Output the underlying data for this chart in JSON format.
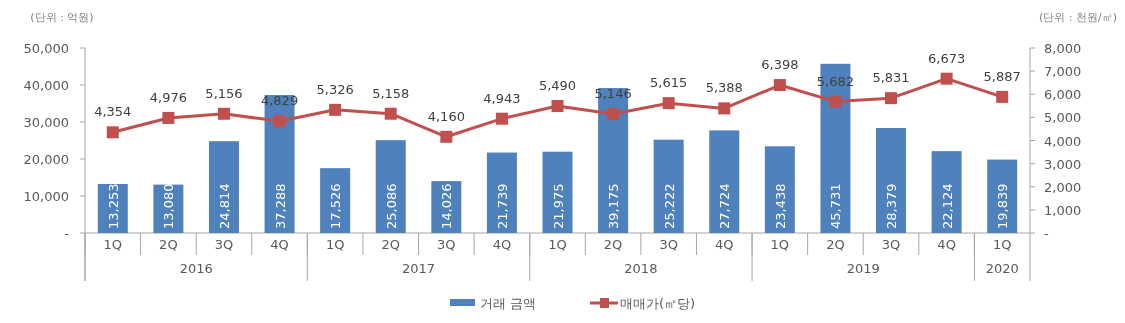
{
  "chart_data": {
    "type": "bar",
    "categories": [
      "1Q",
      "2Q",
      "3Q",
      "4Q",
      "1Q",
      "2Q",
      "3Q",
      "4Q",
      "1Q",
      "2Q",
      "3Q",
      "4Q",
      "1Q",
      "2Q",
      "3Q",
      "4Q",
      "1Q"
    ],
    "series": [
      {
        "name": "거래 금액",
        "color": "#4f81bd",
        "values": [
          13253,
          13080,
          24814,
          37288,
          17526,
          25086,
          14026,
          21739,
          21975,
          39175,
          25222,
          27724,
          23438,
          45731,
          28379,
          22124,
          19839
        ],
        "value_labels": [
          "13,253",
          "13,080",
          "24,814",
          "37,288",
          "17,526",
          "25,086",
          "14,026",
          "21,739",
          "21,975",
          "39,175",
          "25,222",
          "27,724",
          "23,438",
          "45,731",
          "28,379",
          "22,124",
          "19,839"
        ]
      },
      {
        "name": "매매가(㎡당)",
        "type": "line",
        "axis": "y2",
        "color": "#c0504d",
        "marker": "square",
        "values": [
          4354,
          4976,
          5156,
          4829,
          5326,
          5158,
          4160,
          4943,
          5490,
          5146,
          5615,
          5388,
          6398,
          5682,
          5831,
          6673,
          5887
        ],
        "value_labels": [
          "4,354",
          "4,976",
          "5,156",
          "4,829",
          "5,326",
          "5,158",
          "4,160",
          "4,943",
          "5,490",
          "5,146",
          "5,615",
          "5,388",
          "6,398",
          "5,682",
          "5,831",
          "6,673",
          "5,887"
        ]
      }
    ],
    "ylabel": "(단위 : 억원)",
    "y2label": "(단위 : 천원/㎡)",
    "ylim": [
      0,
      50000
    ],
    "yticks": [
      {
        "value": 0,
        "label": "-"
      },
      {
        "value": 10000,
        "label": "10,000"
      },
      {
        "value": 20000,
        "label": "20,000"
      },
      {
        "value": 30000,
        "label": "30,000"
      },
      {
        "value": 40000,
        "label": "40,000"
      },
      {
        "value": 50000,
        "label": "50,000"
      }
    ],
    "y2lim": [
      0,
      8000
    ],
    "y2ticks": [
      {
        "value": 0,
        "label": "-"
      },
      {
        "value": 1000,
        "label": "1,000"
      },
      {
        "value": 2000,
        "label": "2,000"
      },
      {
        "value": 3000,
        "label": "3,000"
      },
      {
        "value": 4000,
        "label": "4,000"
      },
      {
        "value": 5000,
        "label": "5,000"
      },
      {
        "value": 6000,
        "label": "6,000"
      },
      {
        "value": 7000,
        "label": "7,000"
      },
      {
        "value": 8000,
        "label": "8,000"
      }
    ],
    "annotations": [
      "2016",
      "2017",
      "2018",
      "2019",
      "2020"
    ],
    "legend": "bottom",
    "grid": false
  }
}
